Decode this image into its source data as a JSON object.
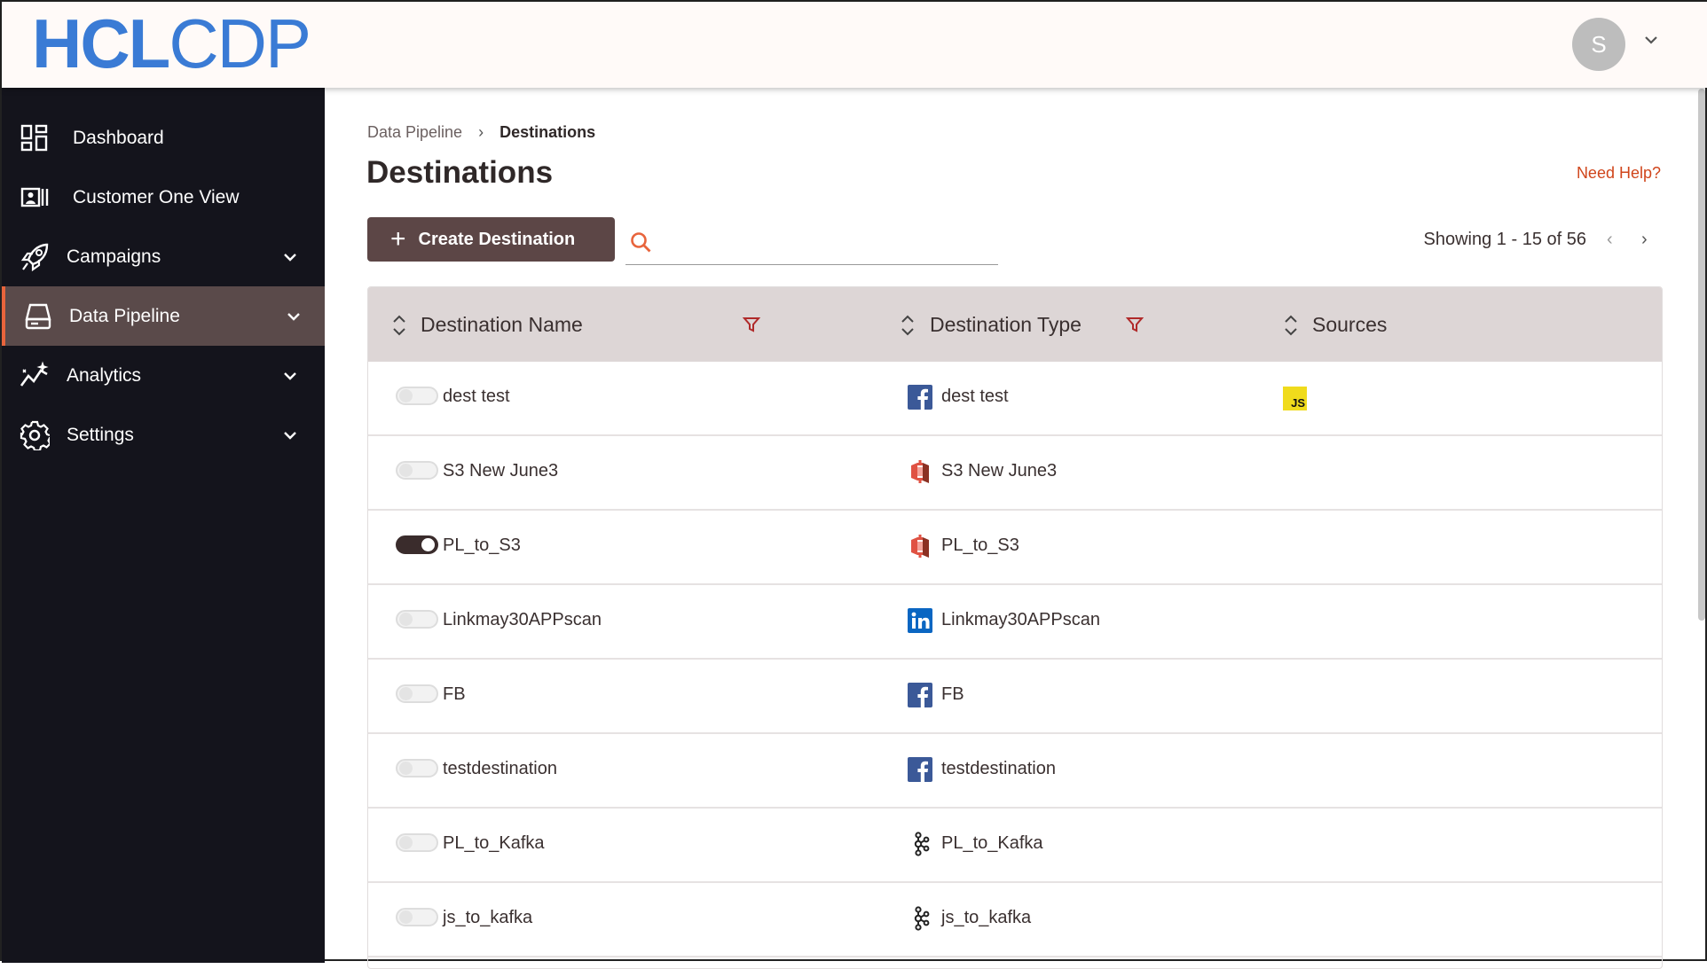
{
  "header": {
    "logo_bold": "HCL",
    "logo_light": "CDP",
    "avatar_initial": "S"
  },
  "sidebar": {
    "items": [
      {
        "label": "Dashboard",
        "icon": "dashboard-icon",
        "expandable": false
      },
      {
        "label": "Customer One View",
        "icon": "contact-card-icon",
        "expandable": false
      },
      {
        "label": "Campaigns",
        "icon": "rocket-icon",
        "expandable": true
      },
      {
        "label": "Data Pipeline",
        "icon": "drive-icon",
        "expandable": true,
        "active": true
      },
      {
        "label": "Analytics",
        "icon": "analytics-icon",
        "expandable": true
      },
      {
        "label": "Settings",
        "icon": "gear-icon",
        "expandable": true
      }
    ]
  },
  "breadcrumb": {
    "parent": "Data Pipeline",
    "current": "Destinations"
  },
  "page": {
    "title": "Destinations",
    "help": "Need Help?",
    "create_label": "Create Destination",
    "search_placeholder": "",
    "showing": "Showing 1 - 15 of 56"
  },
  "colors": {
    "accent": "#5c4646",
    "link": "#d0451b",
    "sidebar": "#14141c",
    "active_bar": "#e8643c"
  },
  "table": {
    "columns": [
      "Destination Name",
      "Destination Type",
      "Sources"
    ],
    "rows": [
      {
        "enabled": false,
        "name": "dest test",
        "type_icon": "facebook",
        "type": "dest test",
        "source": "JS"
      },
      {
        "enabled": false,
        "name": "S3 New June3",
        "type_icon": "s3",
        "type": "S3 New June3",
        "source": ""
      },
      {
        "enabled": true,
        "name": "PL_to_S3",
        "type_icon": "s3",
        "type": "PL_to_S3",
        "source": ""
      },
      {
        "enabled": false,
        "name": "Linkmay30APPscan",
        "type_icon": "linkedin",
        "type": "Linkmay30APPscan",
        "source": ""
      },
      {
        "enabled": false,
        "name": "FB",
        "type_icon": "facebook",
        "type": "FB",
        "source": ""
      },
      {
        "enabled": false,
        "name": "testdestination",
        "type_icon": "facebook",
        "type": "testdestination",
        "source": ""
      },
      {
        "enabled": false,
        "name": "PL_to_Kafka",
        "type_icon": "kafka",
        "type": "PL_to_Kafka",
        "source": ""
      },
      {
        "enabled": false,
        "name": "js_to_kafka",
        "type_icon": "kafka",
        "type": "js_to_kafka",
        "source": ""
      }
    ]
  }
}
